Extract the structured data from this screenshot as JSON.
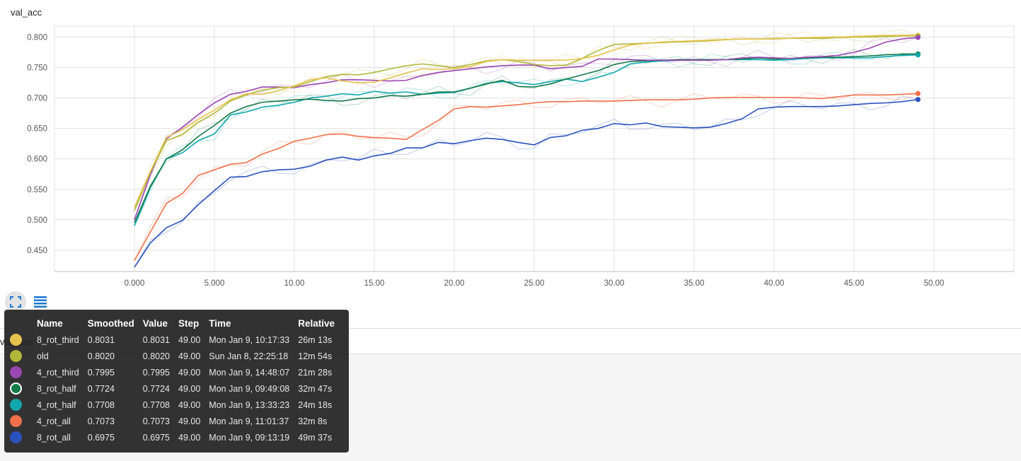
{
  "chart_data": {
    "type": "line",
    "title": "val_acc",
    "xlabel": "",
    "ylabel": "",
    "xlim": [
      -5,
      55
    ],
    "ylim": [
      0.415,
      0.818
    ],
    "x_ticks": [
      "0.000",
      "5.000",
      "10.00",
      "15.00",
      "20.00",
      "25.00",
      "30.00",
      "35.00",
      "40.00",
      "45.00",
      "50.00"
    ],
    "x_tick_values": [
      0,
      5,
      10,
      15,
      20,
      25,
      30,
      35,
      40,
      45,
      50
    ],
    "y_ticks": [
      "0.450",
      "0.500",
      "0.550",
      "0.600",
      "0.650",
      "0.700",
      "0.750",
      "0.800"
    ],
    "y_tick_values": [
      0.45,
      0.5,
      0.55,
      0.6,
      0.65,
      0.7,
      0.75,
      0.8
    ],
    "grid": true,
    "x": [
      0,
      1,
      2,
      3,
      4,
      5,
      6,
      7,
      8,
      9,
      10,
      11,
      12,
      13,
      14,
      15,
      16,
      17,
      18,
      19,
      20,
      21,
      22,
      23,
      24,
      25,
      26,
      27,
      28,
      29,
      30,
      31,
      32,
      33,
      34,
      35,
      36,
      37,
      38,
      39,
      40,
      41,
      42,
      43,
      44,
      45,
      46,
      47,
      48,
      49
    ],
    "series": [
      {
        "name": "8_rot_third",
        "color": "#e6c24e",
        "values": [
          0.52,
          0.58,
          0.635,
          0.648,
          0.665,
          0.68,
          0.697,
          0.707,
          0.706,
          0.712,
          0.72,
          0.73,
          0.733,
          0.728,
          0.725,
          0.726,
          0.733,
          0.741,
          0.748,
          0.747,
          0.748,
          0.752,
          0.76,
          0.763,
          0.762,
          0.762,
          0.762,
          0.762,
          0.765,
          0.77,
          0.779,
          0.787,
          0.79,
          0.792,
          0.793,
          0.794,
          0.795,
          0.796,
          0.797,
          0.797,
          0.798,
          0.798,
          0.799,
          0.8,
          0.8,
          0.801,
          0.802,
          0.803,
          0.803,
          0.8031
        ]
      },
      {
        "name": "old",
        "color": "#b0b83a",
        "values": [
          0.515,
          0.578,
          0.63,
          0.64,
          0.66,
          0.675,
          0.695,
          0.705,
          0.713,
          0.717,
          0.718,
          0.727,
          0.735,
          0.739,
          0.738,
          0.742,
          0.748,
          0.753,
          0.756,
          0.753,
          0.75,
          0.755,
          0.761,
          0.763,
          0.76,
          0.755,
          0.753,
          0.754,
          0.765,
          0.778,
          0.788,
          0.789,
          0.79,
          0.791,
          0.792,
          0.793,
          0.794,
          0.796,
          0.797,
          0.797,
          0.797,
          0.798,
          0.798,
          0.798,
          0.799,
          0.8,
          0.8,
          0.801,
          0.802,
          0.802
        ]
      },
      {
        "name": "4_rot_third",
        "color": "#9a46b3",
        "values": [
          0.5,
          0.575,
          0.633,
          0.652,
          0.673,
          0.692,
          0.706,
          0.711,
          0.718,
          0.718,
          0.717,
          0.722,
          0.725,
          0.73,
          0.73,
          0.729,
          0.728,
          0.729,
          0.737,
          0.742,
          0.745,
          0.748,
          0.751,
          0.753,
          0.754,
          0.754,
          0.748,
          0.75,
          0.752,
          0.764,
          0.764,
          0.763,
          0.762,
          0.762,
          0.762,
          0.762,
          0.762,
          0.763,
          0.766,
          0.767,
          0.766,
          0.765,
          0.767,
          0.768,
          0.77,
          0.775,
          0.782,
          0.792,
          0.797,
          0.7995
        ]
      },
      {
        "name": "8_rot_half",
        "color": "#147a4a",
        "values": [
          0.495,
          0.555,
          0.6,
          0.615,
          0.637,
          0.655,
          0.675,
          0.686,
          0.693,
          0.695,
          0.697,
          0.698,
          0.696,
          0.695,
          0.699,
          0.7,
          0.704,
          0.703,
          0.706,
          0.71,
          0.71,
          0.716,
          0.723,
          0.729,
          0.719,
          0.718,
          0.723,
          0.731,
          0.738,
          0.745,
          0.755,
          0.76,
          0.761,
          0.762,
          0.763,
          0.763,
          0.763,
          0.763,
          0.764,
          0.766,
          0.764,
          0.765,
          0.766,
          0.767,
          0.767,
          0.768,
          0.769,
          0.771,
          0.772,
          0.7724
        ]
      },
      {
        "name": "4_rot_half",
        "color": "#11a7ad",
        "values": [
          0.49,
          0.553,
          0.6,
          0.61,
          0.63,
          0.641,
          0.672,
          0.677,
          0.685,
          0.688,
          0.693,
          0.7,
          0.703,
          0.707,
          0.705,
          0.711,
          0.708,
          0.71,
          0.706,
          0.708,
          0.709,
          0.716,
          0.724,
          0.727,
          0.725,
          0.722,
          0.727,
          0.731,
          0.727,
          0.734,
          0.742,
          0.756,
          0.759,
          0.761,
          0.762,
          0.763,
          0.763,
          0.763,
          0.763,
          0.763,
          0.762,
          0.763,
          0.765,
          0.766,
          0.766,
          0.766,
          0.766,
          0.768,
          0.77,
          0.7708
        ]
      },
      {
        "name": "4_rot_all",
        "color": "#f0704a",
        "values": [
          0.433,
          0.48,
          0.527,
          0.543,
          0.573,
          0.582,
          0.591,
          0.594,
          0.608,
          0.617,
          0.629,
          0.634,
          0.64,
          0.641,
          0.637,
          0.635,
          0.634,
          0.632,
          0.648,
          0.663,
          0.682,
          0.686,
          0.685,
          0.687,
          0.689,
          0.692,
          0.694,
          0.694,
          0.695,
          0.695,
          0.695,
          0.696,
          0.697,
          0.697,
          0.697,
          0.698,
          0.7,
          0.701,
          0.701,
          0.701,
          0.701,
          0.701,
          0.7,
          0.699,
          0.702,
          0.705,
          0.705,
          0.705,
          0.706,
          0.7073
        ]
      },
      {
        "name": "8_rot_all",
        "color": "#2a52be",
        "values": [
          0.422,
          0.462,
          0.487,
          0.499,
          0.525,
          0.548,
          0.57,
          0.571,
          0.579,
          0.582,
          0.583,
          0.588,
          0.598,
          0.603,
          0.598,
          0.605,
          0.609,
          0.618,
          0.618,
          0.627,
          0.625,
          0.63,
          0.634,
          0.632,
          0.627,
          0.623,
          0.635,
          0.638,
          0.647,
          0.65,
          0.658,
          0.656,
          0.659,
          0.653,
          0.652,
          0.651,
          0.652,
          0.658,
          0.666,
          0.682,
          0.685,
          0.686,
          0.686,
          0.686,
          0.687,
          0.689,
          0.691,
          0.692,
          0.694,
          0.6975
        ]
      }
    ]
  },
  "controls": {
    "fullscreen_icon": "fullscreen-icon",
    "data_toggle_icon": "list-icon"
  },
  "next_chart_title": "val_loss",
  "tooltip": {
    "headers": {
      "name": "Name",
      "smoothed": "Smoothed",
      "value": "Value",
      "step": "Step",
      "time": "Time",
      "relative": "Relative"
    },
    "rows": [
      {
        "name": "8_rot_third",
        "color": "#e6c24e",
        "smoothed": "0.8031",
        "value": "0.8031",
        "step": "49.00",
        "time": "Mon Jan 9, 10:17:33",
        "relative": "26m 13s"
      },
      {
        "name": "old",
        "color": "#b0b83a",
        "smoothed": "0.8020",
        "value": "0.8020",
        "step": "49.00",
        "time": "Sun Jan 8, 22:25:18",
        "relative": "12m 54s"
      },
      {
        "name": "4_rot_third",
        "color": "#9a46b3",
        "smoothed": "0.7995",
        "value": "0.7995",
        "step": "49.00",
        "time": "Mon Jan 9, 14:48:07",
        "relative": "21m 28s"
      },
      {
        "name": "8_rot_half",
        "color": "#147a4a",
        "smoothed": "0.7724",
        "value": "0.7724",
        "step": "49.00",
        "time": "Mon Jan 9, 09:49:08",
        "relative": "32m 47s"
      },
      {
        "name": "4_rot_half",
        "color": "#11a7ad",
        "smoothed": "0.7708",
        "value": "0.7708",
        "step": "49.00",
        "time": "Mon Jan 9, 13:33:23",
        "relative": "24m 18s"
      },
      {
        "name": "4_rot_all",
        "color": "#f0704a",
        "smoothed": "0.7073",
        "value": "0.7073",
        "step": "49.00",
        "time": "Mon Jan 9, 11:01:37",
        "relative": "32m 8s"
      },
      {
        "name": "8_rot_all",
        "color": "#2a52be",
        "smoothed": "0.6975",
        "value": "0.6975",
        "step": "49.00",
        "time": "Mon Jan 9, 09:13:19",
        "relative": "49m 37s"
      }
    ]
  }
}
